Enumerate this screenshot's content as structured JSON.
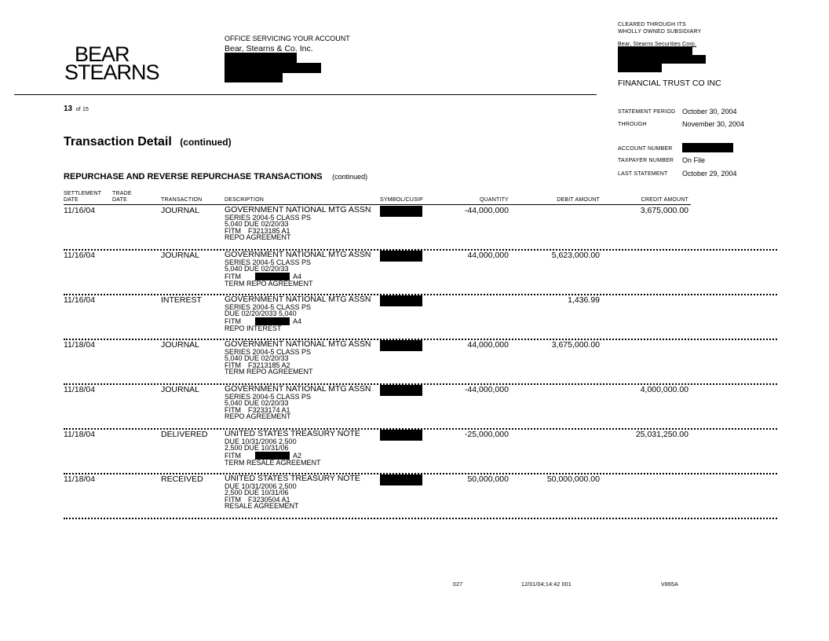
{
  "header": {
    "logo": [
      "BEAR",
      "STEARNS"
    ],
    "office_label": "OFFICE SERVICING YOUR ACCOUNT",
    "office_name": "Bear, Stearns & Co. Inc.",
    "cleared_label": [
      "CLEARED THROUGH ITS",
      "WHOLLY OWNED SUBSIDIARY"
    ],
    "clearing_firm": "Bear, Stearns Securities Corp.",
    "account_name": "FINANCIAL TRUST CO INC",
    "page_number": "13",
    "page_of": "of 15"
  },
  "statement": {
    "period_label": "STATEMENT PERIOD",
    "period_value": "October 30, 2004",
    "through_label": "THROUGH",
    "through_value": "November 30, 2004",
    "account_label": "ACCOUNT NUMBER",
    "taxpayer_label": "TAXPAYER NUMBER",
    "taxpayer_value": "On File",
    "last_label": "LAST STATEMENT",
    "last_value": "October 29, 2004"
  },
  "title": "Transaction Detail",
  "title_suffix": "(continued)",
  "section": "REPURCHASE AND REVERSE REPURCHASE TRANSACTIONS",
  "section_suffix": "(continued)",
  "columns": {
    "settlement": [
      "SETTLEMENT",
      "DATE"
    ],
    "trade": [
      "TRADE",
      "DATE"
    ],
    "transaction": "TRANSACTION",
    "description": "DESCRIPTION",
    "symbol": "SYMBOL/CUSIP",
    "quantity": "QUANTITY",
    "debit": "DEBIT AMOUNT",
    "credit": "CREDIT AMOUNT"
  },
  "rows": [
    {
      "settlement": "11/16/04",
      "trade": "",
      "transaction": "JOURNAL",
      "description": [
        "GOVERNMENT NATIONAL  MTG ASSN",
        "SERIES 2004-5 CLASS PS",
        "5,040 DUE 02/20/33",
        {
          "prefix": "FITM",
          "text": "F3213185 A1"
        },
        "REPO AGREEMENT"
      ],
      "quantity": "-44,000,000",
      "debit": "",
      "credit": "3,675,000.00"
    },
    {
      "settlement": "11/16/04",
      "trade": "",
      "transaction": "JOURNAL",
      "description": [
        "GOVERNMENT NATIONAL  MTG ASSN",
        "SERIES 2004-5 CLASS PS",
        "5,040 DUE 02/20/33",
        {
          "prefix": "FITM",
          "redacted": true,
          "text": "A4"
        },
        "TERM REPO AGREEMENT"
      ],
      "quantity": "44,000,000",
      "debit": "5,623,000.00",
      "credit": ""
    },
    {
      "settlement": "11/16/04",
      "trade": "",
      "transaction": "INTEREST",
      "description": [
        "GOVERNMENT NATIONAL  MTG ASSN",
        "SERIES 2004-5 CLASS PS",
        "DUE 02/20/2033       5,040",
        {
          "prefix": "FITM",
          "redacted": true,
          "text": "A4"
        },
        "REPO INTEREST"
      ],
      "quantity": "",
      "debit": "1,436.99",
      "credit": ""
    },
    {
      "settlement": "11/18/04",
      "trade": "",
      "transaction": "JOURNAL",
      "description": [
        "GOVERNMENT NATIONAL  MTG ASSN",
        "SERIES 2004-5 CLASS PS",
        "5,040 DUE 02/20/33",
        {
          "prefix": "FITM",
          "text": "F3213185 A2"
        },
        "TERM REPO AGREEMENT"
      ],
      "quantity": "44,000,000",
      "debit": "3,675,000.00",
      "credit": ""
    },
    {
      "settlement": "11/18/04",
      "trade": "",
      "transaction": "JOURNAL",
      "description": [
        "GOVERNMENT NATIONAL  MTG ASSN",
        "SERIES 2004-5 CLASS PS",
        "5,040 DUE 02/20/33",
        {
          "prefix": "FITM",
          "text": "F3233174 A1"
        },
        "REPO AGREEMENT"
      ],
      "quantity": "-44,000,000",
      "debit": "",
      "credit": "4,000,000.00"
    },
    {
      "settlement": "11/18/04",
      "trade": "",
      "transaction": "DELIVERED",
      "description": [
        "UNITED STATES TREASURY  NOTE",
        "DUE 10/31/2006       2,500",
        "2,500 DUE 10/31/06",
        {
          "prefix": "FITM",
          "redacted": true,
          "text": "A2"
        },
        "TERM RESALE AGREEMENT"
      ],
      "quantity": "-25,000,000",
      "debit": "",
      "credit": "25,031,250.00"
    },
    {
      "settlement": "11/18/04",
      "trade": "",
      "transaction": "RECEIVED",
      "description": [
        "UNITED STATES TREASURY  NOTE",
        "DUE 10/31/2006       2,500",
        "2,500 DUE 10/31/06",
        {
          "prefix": "FITM",
          "text": "F3230504 A1"
        },
        "RESALE AGREEMENT"
      ],
      "quantity": "50,000,000",
      "debit": "50,000,000.00",
      "credit": ""
    }
  ],
  "footer": {
    "code1": "027",
    "timestamp": "12/01/04;14:42  001",
    "code2": "V865A"
  }
}
